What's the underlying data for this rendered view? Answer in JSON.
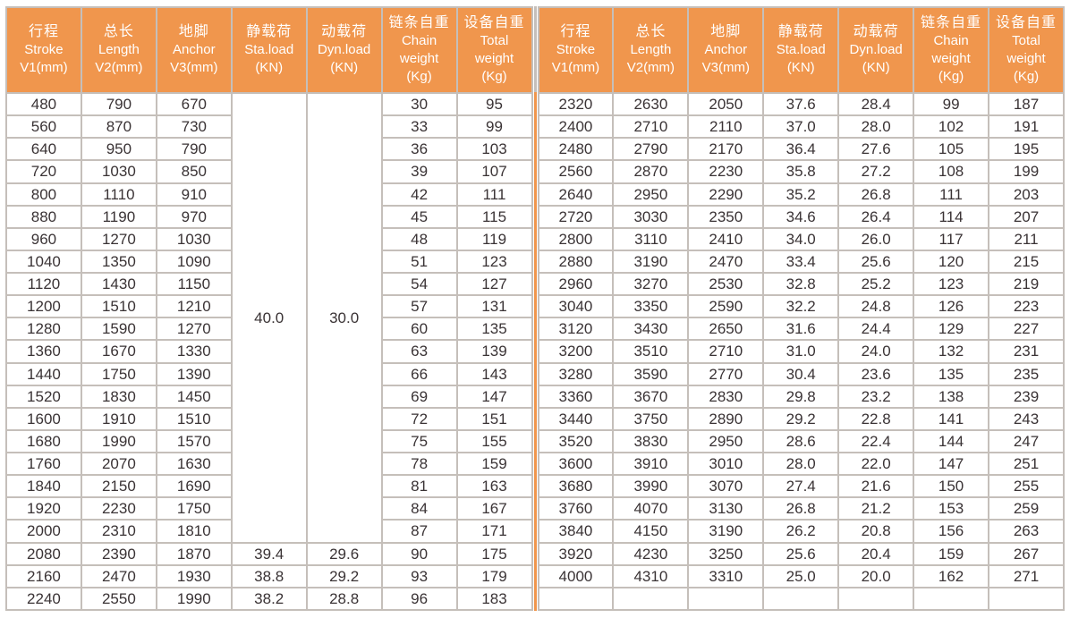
{
  "colors": {
    "header_bg": "#f0964d",
    "divider_orange": "#f0964d",
    "grid_border": "#c5bfba",
    "cell_text": "#3a3335",
    "header_text": "#ffffff"
  },
  "table": {
    "columns": [
      {
        "lines": [
          "行程",
          "Stroke",
          "V1(mm)"
        ]
      },
      {
        "lines": [
          "总长",
          "Length",
          "V2(mm)"
        ]
      },
      {
        "lines": [
          "地脚",
          "Anchor",
          "V3(mm)"
        ]
      },
      {
        "lines": [
          "静载荷",
          "Sta.load",
          "(KN)"
        ]
      },
      {
        "lines": [
          "动载荷",
          "Dyn.load",
          "(KN)"
        ]
      },
      {
        "lines": [
          "链条自重",
          "Chain",
          "weight",
          "(Kg)"
        ]
      },
      {
        "lines": [
          "设备自重",
          "Total",
          "weight",
          "(Kg)"
        ]
      }
    ],
    "left": {
      "merged_columns": [
        3,
        4
      ],
      "merged_row_span": 20,
      "rows": [
        [
          "480",
          "790",
          "670",
          "40.0",
          "30.0",
          "30",
          "95"
        ],
        [
          "560",
          "870",
          "730",
          "",
          "",
          "33",
          "99"
        ],
        [
          "640",
          "950",
          "790",
          "",
          "",
          "36",
          "103"
        ],
        [
          "720",
          "1030",
          "850",
          "",
          "",
          "39",
          "107"
        ],
        [
          "800",
          "1110",
          "910",
          "",
          "",
          "42",
          "111"
        ],
        [
          "880",
          "1190",
          "970",
          "",
          "",
          "45",
          "115"
        ],
        [
          "960",
          "1270",
          "1030",
          "",
          "",
          "48",
          "119"
        ],
        [
          "1040",
          "1350",
          "1090",
          "",
          "",
          "51",
          "123"
        ],
        [
          "1120",
          "1430",
          "1150",
          "",
          "",
          "54",
          "127"
        ],
        [
          "1200",
          "1510",
          "1210",
          "",
          "",
          "57",
          "131"
        ],
        [
          "1280",
          "1590",
          "1270",
          "",
          "",
          "60",
          "135"
        ],
        [
          "1360",
          "1670",
          "1330",
          "",
          "",
          "63",
          "139"
        ],
        [
          "1440",
          "1750",
          "1390",
          "",
          "",
          "66",
          "143"
        ],
        [
          "1520",
          "1830",
          "1450",
          "",
          "",
          "69",
          "147"
        ],
        [
          "1600",
          "1910",
          "1510",
          "",
          "",
          "72",
          "151"
        ],
        [
          "1680",
          "1990",
          "1570",
          "",
          "",
          "75",
          "155"
        ],
        [
          "1760",
          "2070",
          "1630",
          "",
          "",
          "78",
          "159"
        ],
        [
          "1840",
          "2150",
          "1690",
          "",
          "",
          "81",
          "163"
        ],
        [
          "1920",
          "2230",
          "1750",
          "",
          "",
          "84",
          "167"
        ],
        [
          "2000",
          "2310",
          "1810",
          "",
          "",
          "87",
          "171"
        ],
        [
          "2080",
          "2390",
          "1870",
          "39.4",
          "29.6",
          "90",
          "175"
        ],
        [
          "2160",
          "2470",
          "1930",
          "38.8",
          "29.2",
          "93",
          "179"
        ],
        [
          "2240",
          "2550",
          "1990",
          "38.2",
          "28.8",
          "96",
          "183"
        ]
      ]
    },
    "right": {
      "merged_columns": [],
      "merged_row_span": 0,
      "rows": [
        [
          "2320",
          "2630",
          "2050",
          "37.6",
          "28.4",
          "99",
          "187"
        ],
        [
          "2400",
          "2710",
          "2110",
          "37.0",
          "28.0",
          "102",
          "191"
        ],
        [
          "2480",
          "2790",
          "2170",
          "36.4",
          "27.6",
          "105",
          "195"
        ],
        [
          "2560",
          "2870",
          "2230",
          "35.8",
          "27.2",
          "108",
          "199"
        ],
        [
          "2640",
          "2950",
          "2290",
          "35.2",
          "26.8",
          "111",
          "203"
        ],
        [
          "2720",
          "3030",
          "2350",
          "34.6",
          "26.4",
          "114",
          "207"
        ],
        [
          "2800",
          "3110",
          "2410",
          "34.0",
          "26.0",
          "117",
          "211"
        ],
        [
          "2880",
          "3190",
          "2470",
          "33.4",
          "25.6",
          "120",
          "215"
        ],
        [
          "2960",
          "3270",
          "2530",
          "32.8",
          "25.2",
          "123",
          "219"
        ],
        [
          "3040",
          "3350",
          "2590",
          "32.2",
          "24.8",
          "126",
          "223"
        ],
        [
          "3120",
          "3430",
          "2650",
          "31.6",
          "24.4",
          "129",
          "227"
        ],
        [
          "3200",
          "3510",
          "2710",
          "31.0",
          "24.0",
          "132",
          "231"
        ],
        [
          "3280",
          "3590",
          "2770",
          "30.4",
          "23.6",
          "135",
          "235"
        ],
        [
          "3360",
          "3670",
          "2830",
          "29.8",
          "23.2",
          "138",
          "239"
        ],
        [
          "3440",
          "3750",
          "2890",
          "29.2",
          "22.8",
          "141",
          "243"
        ],
        [
          "3520",
          "3830",
          "2950",
          "28.6",
          "22.4",
          "144",
          "247"
        ],
        [
          "3600",
          "3910",
          "3010",
          "28.0",
          "22.0",
          "147",
          "251"
        ],
        [
          "3680",
          "3990",
          "3070",
          "27.4",
          "21.6",
          "150",
          "255"
        ],
        [
          "3760",
          "4070",
          "3130",
          "26.8",
          "21.2",
          "153",
          "259"
        ],
        [
          "3840",
          "4150",
          "3190",
          "26.2",
          "20.8",
          "156",
          "263"
        ],
        [
          "3920",
          "4230",
          "3250",
          "25.6",
          "20.4",
          "159",
          "267"
        ],
        [
          "4000",
          "4310",
          "3310",
          "25.0",
          "20.0",
          "162",
          "271"
        ],
        [
          "",
          "",
          "",
          "",
          "",
          "",
          ""
        ]
      ]
    }
  }
}
